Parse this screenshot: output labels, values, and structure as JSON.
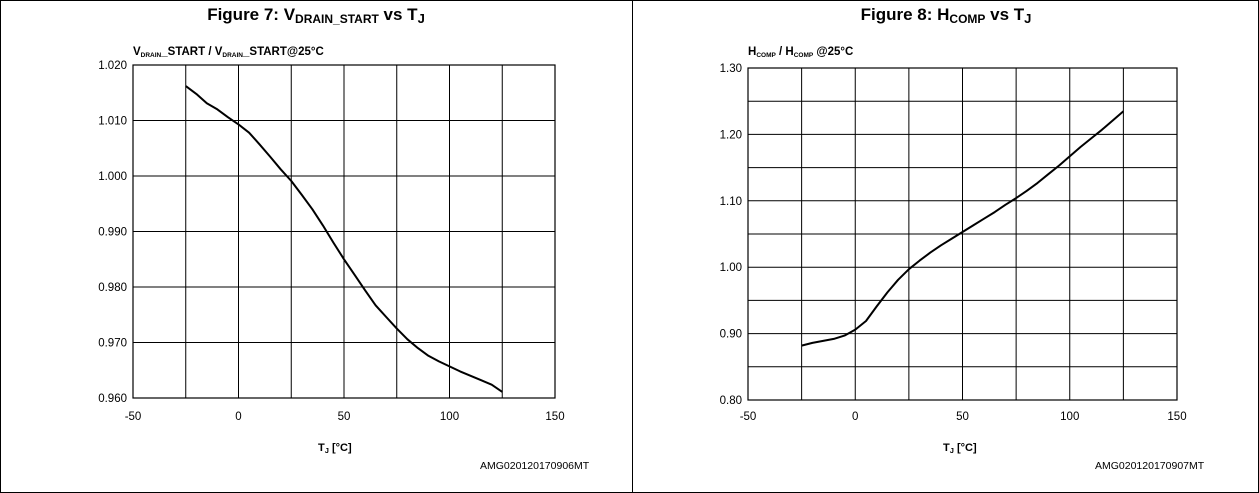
{
  "chart_data": [
    {
      "type": "line",
      "title": {
        "prefix": "Figure 7: V",
        "sub1": "DRAIN_START",
        "mid": " vs T",
        "sub2": "J"
      },
      "ylabel": {
        "v1": "V",
        "s1": "DRAIN",
        "t1": "_START / V",
        "s2": "DRAIN",
        "t2": "_START@25°C"
      },
      "xlabel": {
        "t": "T",
        "s": "J",
        "rest": " [°C]"
      },
      "code": "AMG020120170906MT",
      "xlim": [
        -50,
        150
      ],
      "ylim": [
        0.96,
        1.02
      ],
      "x_ticks": [
        "-50",
        "0",
        "50",
        "100",
        "150"
      ],
      "y_ticks": [
        "0.960",
        "0.970",
        "0.980",
        "0.990",
        "1.000",
        "1.010",
        "1.020"
      ],
      "series": [
        {
          "x": [
            -25,
            -20,
            -15,
            -10,
            -5,
            0,
            5,
            10,
            15,
            20,
            25,
            30,
            35,
            40,
            45,
            50,
            55,
            60,
            65,
            70,
            75,
            80,
            85,
            90,
            95,
            100,
            105,
            110,
            115,
            120,
            125
          ],
          "y": [
            1.0162,
            1.0148,
            1.0131,
            1.012,
            1.0106,
            1.0093,
            1.0078,
            1.0057,
            1.0035,
            1.0012,
            0.9991,
            0.9966,
            0.994,
            0.9911,
            0.988,
            0.985,
            0.9822,
            0.9794,
            0.9767,
            0.9746,
            0.9725,
            0.9706,
            0.969,
            0.9676,
            0.9666,
            0.9657,
            0.9648,
            0.964,
            0.9632,
            0.9624,
            0.9611
          ]
        }
      ]
    },
    {
      "type": "line",
      "title": {
        "prefix": "Figure 8: H",
        "sub1": "COMP",
        "mid": " vs T",
        "sub2": "J"
      },
      "ylabel": {
        "v1": "H",
        "s1": "COMP",
        "t1": " / H",
        "s2": "COMP",
        "t2": " @25°C"
      },
      "xlabel": {
        "t": "T",
        "s": "J",
        "rest": "  [°C]"
      },
      "code": "AMG020120170907MT",
      "xlim": [
        -50,
        150
      ],
      "ylim": [
        0.8,
        1.3
      ],
      "x_ticks": [
        "-50",
        "0",
        "50",
        "100",
        "150"
      ],
      "y_ticks": [
        "0.80",
        "0.90",
        "1.00",
        "1.10",
        "1.20",
        "1.30"
      ],
      "series": [
        {
          "x": [
            -25,
            -20,
            -15,
            -10,
            -5,
            0,
            5,
            10,
            15,
            20,
            25,
            30,
            35,
            40,
            45,
            50,
            55,
            60,
            65,
            70,
            75,
            80,
            85,
            90,
            95,
            100,
            105,
            110,
            115,
            120,
            125
          ],
          "y": [
            0.882,
            0.886,
            0.889,
            0.892,
            0.897,
            0.906,
            0.919,
            0.941,
            0.962,
            0.981,
            0.997,
            1.01,
            1.022,
            1.033,
            1.043,
            1.053,
            1.063,
            1.073,
            1.083,
            1.094,
            1.104,
            1.115,
            1.127,
            1.14,
            1.153,
            1.167,
            1.181,
            1.194,
            1.207,
            1.221,
            1.235
          ]
        }
      ]
    }
  ]
}
